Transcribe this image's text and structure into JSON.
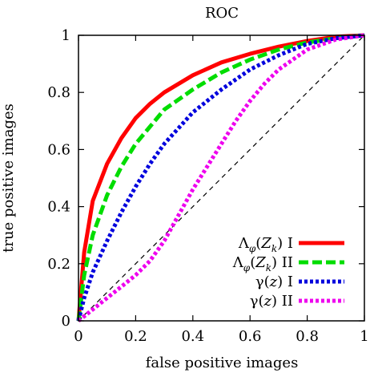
{
  "chart_data": {
    "type": "line",
    "title": "ROC",
    "xlabel": "false positive images",
    "ylabel": "true positive images",
    "xlim": [
      0,
      1
    ],
    "ylim": [
      0,
      1
    ],
    "x_ticks": [
      0,
      0.2,
      0.4,
      0.6,
      0.8,
      1
    ],
    "y_ticks": [
      0,
      0.2,
      0.4,
      0.6,
      0.8,
      1
    ],
    "x_tick_labels": [
      "0",
      "0.2",
      "0.4",
      "0.6",
      "0.8",
      "1"
    ],
    "y_tick_labels": [
      "0",
      "0.2",
      "0.4",
      "0.6",
      "0.8",
      "1"
    ],
    "grid": false,
    "legend_position": "bottom-right",
    "reference_line": {
      "style": "dashed",
      "color": "#000000",
      "points": [
        [
          0,
          0
        ],
        [
          1,
          1
        ]
      ]
    },
    "series": [
      {
        "name": "Λφ(Zk) I",
        "label_main": "Λ",
        "label_sub1": "φ",
        "label_arg": "Z",
        "label_sub2": "k",
        "label_suffix": "I",
        "color": "#ff0000",
        "style": "solid",
        "points": [
          [
            0,
            0
          ],
          [
            0.02,
            0.24
          ],
          [
            0.05,
            0.42
          ],
          [
            0.1,
            0.55
          ],
          [
            0.15,
            0.64
          ],
          [
            0.2,
            0.71
          ],
          [
            0.25,
            0.76
          ],
          [
            0.3,
            0.8
          ],
          [
            0.4,
            0.86
          ],
          [
            0.5,
            0.905
          ],
          [
            0.6,
            0.935
          ],
          [
            0.7,
            0.96
          ],
          [
            0.8,
            0.98
          ],
          [
            0.9,
            0.995
          ],
          [
            1,
            1
          ]
        ]
      },
      {
        "name": "Λφ(Zk) II",
        "label_main": "Λ",
        "label_sub1": "φ",
        "label_arg": "Z",
        "label_sub2": "k",
        "label_suffix": "II",
        "color": "#00dd00",
        "style": "dashed",
        "points": [
          [
            0,
            0
          ],
          [
            0.02,
            0.16
          ],
          [
            0.05,
            0.3
          ],
          [
            0.1,
            0.44
          ],
          [
            0.15,
            0.54
          ],
          [
            0.2,
            0.62
          ],
          [
            0.25,
            0.68
          ],
          [
            0.3,
            0.74
          ],
          [
            0.4,
            0.81
          ],
          [
            0.5,
            0.87
          ],
          [
            0.6,
            0.915
          ],
          [
            0.7,
            0.95
          ],
          [
            0.8,
            0.975
          ],
          [
            0.9,
            0.99
          ],
          [
            1,
            1
          ]
        ]
      },
      {
        "name": "γ(z) I",
        "label_main": "γ",
        "label_arg": "z",
        "label_suffix": "I",
        "color": "#0000dd",
        "style": "dotted",
        "points": [
          [
            0,
            0
          ],
          [
            0.02,
            0.08
          ],
          [
            0.05,
            0.17
          ],
          [
            0.1,
            0.28
          ],
          [
            0.15,
            0.38
          ],
          [
            0.2,
            0.47
          ],
          [
            0.25,
            0.55
          ],
          [
            0.3,
            0.62
          ],
          [
            0.4,
            0.73
          ],
          [
            0.5,
            0.81
          ],
          [
            0.6,
            0.88
          ],
          [
            0.7,
            0.93
          ],
          [
            0.8,
            0.97
          ],
          [
            0.9,
            0.99
          ],
          [
            1,
            1
          ]
        ]
      },
      {
        "name": "γ(z) II",
        "label_main": "γ",
        "label_arg": "z",
        "label_suffix": "II",
        "color": "#ee00ee",
        "style": "dotted",
        "points": [
          [
            0,
            0
          ],
          [
            0.05,
            0.04
          ],
          [
            0.1,
            0.08
          ],
          [
            0.15,
            0.12
          ],
          [
            0.2,
            0.16
          ],
          [
            0.25,
            0.21
          ],
          [
            0.3,
            0.28
          ],
          [
            0.35,
            0.37
          ],
          [
            0.4,
            0.46
          ],
          [
            0.45,
            0.54
          ],
          [
            0.5,
            0.62
          ],
          [
            0.55,
            0.7
          ],
          [
            0.6,
            0.77
          ],
          [
            0.65,
            0.83
          ],
          [
            0.7,
            0.88
          ],
          [
            0.8,
            0.95
          ],
          [
            0.9,
            0.985
          ],
          [
            1,
            1
          ]
        ]
      }
    ]
  }
}
